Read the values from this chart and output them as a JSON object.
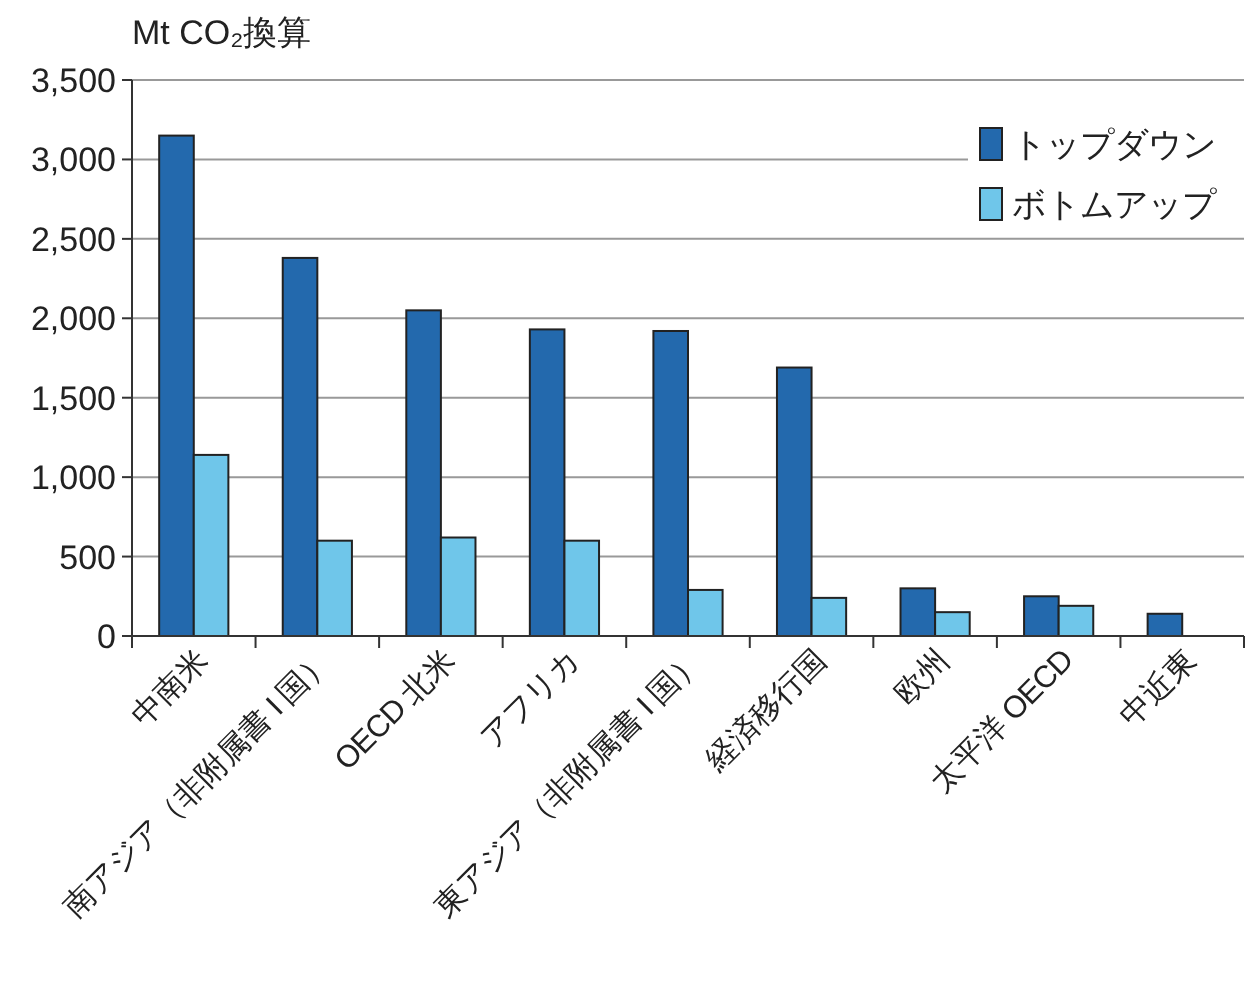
{
  "chart_data": {
    "type": "bar",
    "ylabel": "Mt CO₂換算",
    "categories": [
      "中南米",
      "南アジア（非附属書 I 国）",
      "OECD 北米",
      "アフリカ",
      "東アジア（非附属書 I 国）",
      "経済移行国",
      "欧州",
      "太平洋 OECD",
      "中近東"
    ],
    "series": [
      {
        "name": "トップダウン",
        "color": "#2369ad",
        "values": [
          3150,
          2380,
          2050,
          1930,
          1920,
          1690,
          300,
          250,
          140
        ]
      },
      {
        "name": "ボトムアップ",
        "color": "#6fc6ea",
        "values": [
          1140,
          600,
          620,
          600,
          290,
          240,
          150,
          190,
          null
        ]
      }
    ],
    "ylim": [
      0,
      3500
    ],
    "yticks": [
      {
        "value": 0,
        "label": "0"
      },
      {
        "value": 500,
        "label": "500"
      },
      {
        "value": 1000,
        "label": "1,000"
      },
      {
        "value": 1500,
        "label": "1,500"
      },
      {
        "value": 2000,
        "label": "2,000"
      },
      {
        "value": 2500,
        "label": "2,500"
      },
      {
        "value": 3000,
        "label": "3,000"
      },
      {
        "value": 3500,
        "label": "3,500"
      }
    ],
    "grid": "y",
    "legend": "top right"
  }
}
